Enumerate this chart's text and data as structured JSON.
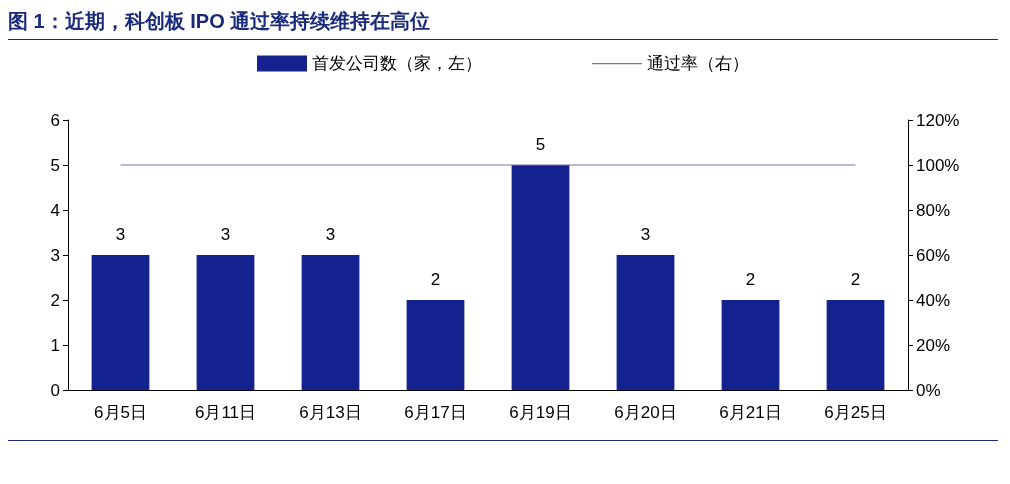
{
  "chart_data": {
    "type": "bar",
    "title": "图 1：近期，科创板 IPO 通过率持续维持在高位",
    "categories": [
      "6月5日",
      "6月11日",
      "6月13日",
      "6月17日",
      "6月19日",
      "6月20日",
      "6月21日",
      "6月25日"
    ],
    "series": [
      {
        "name": "首发公司数（家，左）",
        "color": "#14228f",
        "values": [
          3,
          3,
          3,
          2,
          5,
          3,
          2,
          2
        ],
        "value_labels": [
          "3",
          "3",
          "3",
          "2",
          "5",
          "3",
          "2",
          "2"
        ]
      },
      {
        "name": "通过率（右）",
        "type": "line",
        "axis": "y2",
        "color": "#8070a8",
        "values": [
          100,
          100,
          100,
          100,
          100,
          100,
          100,
          100
        ]
      }
    ],
    "ylim": [
      0,
      6
    ],
    "yticks": [
      0,
      1,
      2,
      3,
      4,
      5,
      6
    ],
    "y2lim": [
      0,
      120
    ],
    "y2ticks": [
      {
        "value": 0,
        "label": "0%"
      },
      {
        "value": 20,
        "label": "20%"
      },
      {
        "value": 40,
        "label": "40%"
      },
      {
        "value": 60,
        "label": "60%"
      },
      {
        "value": 80,
        "label": "80%"
      },
      {
        "value": 100,
        "label": "100%"
      },
      {
        "value": 120,
        "label": "120%"
      }
    ],
    "legend": "top",
    "grid": false,
    "marker": "none",
    "line_style": "solid"
  }
}
